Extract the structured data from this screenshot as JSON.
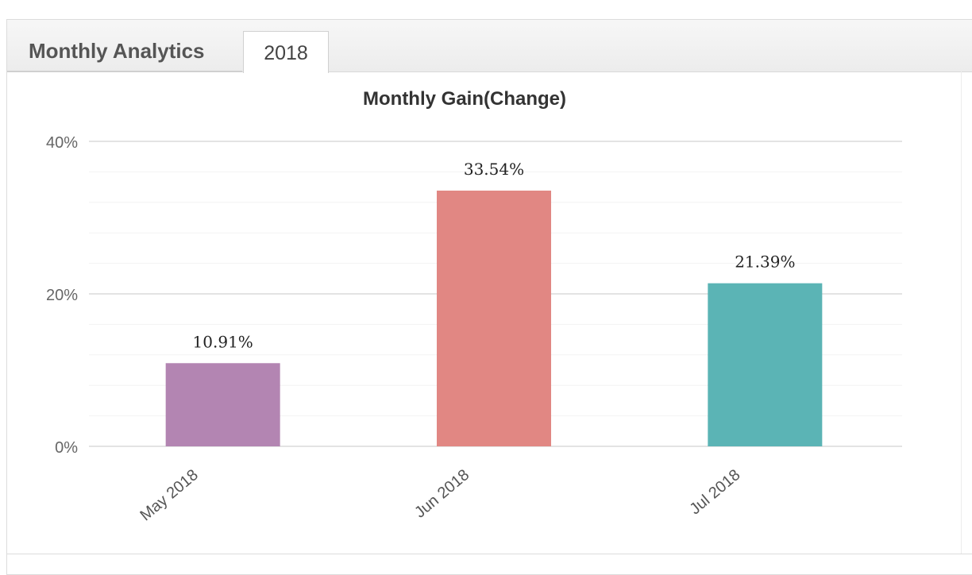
{
  "panel": {
    "title": "Monthly Analytics",
    "tabs": [
      {
        "label": "2018",
        "active": true
      }
    ]
  },
  "chart_data": {
    "type": "bar",
    "title": "Monthly Gain(Change)",
    "xlabel": "",
    "ylabel": "",
    "categories": [
      "May 2018",
      "Jun 2018",
      "Jul 2018"
    ],
    "values": [
      10.91,
      33.54,
      21.39
    ],
    "data_labels": [
      "10.91%",
      "33.54%",
      "21.39%"
    ],
    "colors": [
      "#b385b2",
      "#e18783",
      "#5bb4b5"
    ],
    "ylim": [
      0,
      40
    ],
    "yticks": [
      0,
      20,
      40
    ],
    "ytick_labels": [
      "0%",
      "20%",
      "40%"
    ],
    "minor_grid_step": 4,
    "grid": true,
    "legend": "none"
  }
}
